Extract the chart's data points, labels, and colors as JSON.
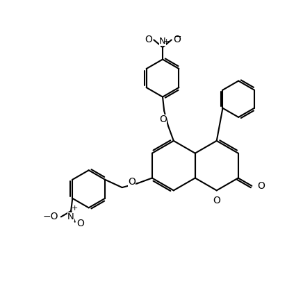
{
  "bg_color": "#ffffff",
  "line_color": "#000000",
  "lw": 1.5,
  "figsize": [
    4.36,
    4.38
  ],
  "dpi": 100,
  "xlim": [
    0,
    10
  ],
  "ylim": [
    0,
    10
  ]
}
